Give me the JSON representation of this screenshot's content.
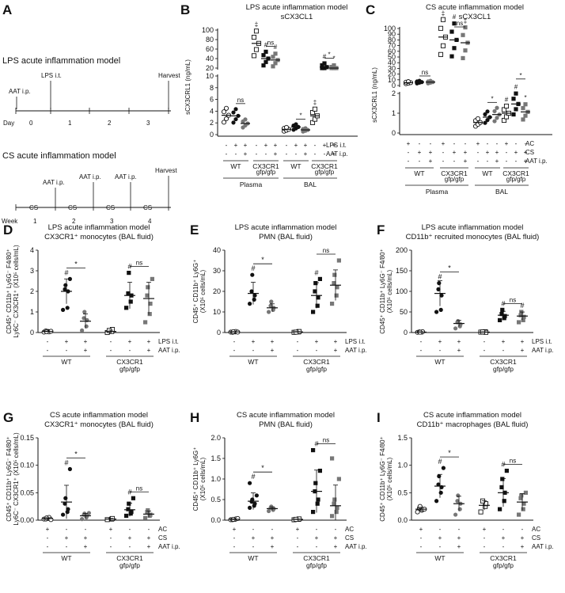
{
  "panel_a": {
    "label": "A",
    "lps": {
      "title": "LPS acute inflammation model",
      "events": [
        "AAT i.p.",
        "LPS i.t.",
        "Harvest"
      ],
      "row_label": "Day",
      "ticks": [
        "0",
        "1",
        "2",
        "3"
      ]
    },
    "cs": {
      "title": "CS acute inflammation model",
      "events": [
        "AAT i.p.",
        "AAT i.p.",
        "AAT i.p.",
        "Harvest"
      ],
      "segment_label": "CS",
      "row_label": "Week",
      "ticks": [
        "1",
        "2",
        "3",
        "4"
      ]
    }
  },
  "chart_data": [
    {
      "id": "B",
      "label": "B",
      "type": "scatter",
      "title": "LPS acute inflammation model",
      "subtitle": "sCX3CL1",
      "ylabel": "sCX3CRL1 (ng/mL)",
      "axis": {
        "lower": {
          "ylim": [
            0,
            10
          ],
          "ticks": [
            "0",
            "2",
            "4",
            "6",
            "8",
            "10"
          ]
        },
        "upper": {
          "ylim": [
            20,
            100
          ],
          "ticks": [
            "20",
            "40",
            "60",
            "80",
            "100"
          ]
        }
      },
      "groups": [
        "Plasma WT -/-",
        "Plasma WT +/-",
        "Plasma WT +/+",
        "Plasma CX3CR1 -/-",
        "Plasma CX3CR1 +/-",
        "Plasma CX3CR1 +/+",
        "BAL WT -/-",
        "BAL WT +/-",
        "BAL WT +/+",
        "BAL CX3CR1 -/-",
        "BAL CX3CR1 +/-",
        "BAL CX3CR1 +/+"
      ],
      "means": [
        3.3,
        3.2,
        1.9,
        72,
        40,
        37,
        0.9,
        1.3,
        0.8,
        3.2,
        22,
        19
      ],
      "points": [
        [
          2,
          3,
          4,
          5,
          2.5,
          3.5
        ],
        [
          1.5,
          3.5,
          5,
          2,
          4,
          3
        ],
        [
          1.7,
          2,
          1.9
        ],
        [
          85,
          70,
          60,
          75,
          65,
          80
        ],
        [
          30,
          45,
          40,
          35,
          55
        ],
        [
          25,
          40,
          50,
          30,
          38
        ]
      ],
      "points_bal": [
        [
          0.6,
          0.9,
          1.0,
          1.1,
          0.8
        ],
        [
          1.0,
          1.5,
          1.2,
          1.6,
          1.4
        ],
        [
          0.5,
          0.8,
          1.1,
          0.7
        ],
        [
          2.5,
          3.5,
          4,
          3,
          2.2
        ],
        [
          20,
          22,
          25,
          21
        ],
        [
          15,
          19,
          22,
          18
        ]
      ],
      "markers": [
        "‡",
        "#",
        "#",
        "‡",
        "#",
        "*"
      ],
      "significance": [
        "ns",
        "ns",
        "*",
        "*"
      ],
      "rows": [
        {
          "name": "LPS i.t.",
          "cells": [
            "-",
            "+",
            "+",
            "-",
            "+",
            "+",
            "-",
            "+",
            "+",
            "-",
            "+",
            "+"
          ]
        },
        {
          "name": "AAT i.p.",
          "cells": [
            "-",
            "-",
            "+",
            "-",
            "-",
            "+",
            "-",
            "-",
            "+",
            "-",
            "-",
            "+"
          ]
        }
      ],
      "genotypes": [
        "WT",
        "CX3CR1",
        "gfp/gfp"
      ],
      "compartments": [
        "Plasma",
        "BAL"
      ]
    },
    {
      "id": "C",
      "label": "C",
      "type": "scatter",
      "title": "CS acute inflammation model",
      "subtitle": "sCX3CL1",
      "ylabel": "sCX3CRL1 (ng/mL)",
      "axis": {
        "lower": {
          "ylim": [
            0,
            3
          ],
          "ticks": [
            "0",
            "1",
            "2"
          ]
        },
        "upper": {
          "ylim": [
            0,
            100
          ],
          "ticks": [
            "0",
            "10",
            "20",
            "30",
            "40",
            "50",
            "60",
            "70",
            "80",
            "90",
            "100"
          ]
        }
      },
      "means": [
        5,
        6,
        6,
        85,
        80,
        75,
        0.8,
        1.2,
        1.4,
        1.5,
        2.2,
        1.6
      ],
      "markers": [
        "‡",
        "#",
        "‡",
        "#",
        "#",
        "*"
      ],
      "significance": [
        "ns",
        "ns",
        "*",
        "*"
      ],
      "rows": [
        {
          "name": "AC",
          "cells": [
            "+",
            "-",
            "-",
            "+",
            "-",
            "-",
            "+",
            "-",
            "-",
            "+",
            "-",
            "-"
          ]
        },
        {
          "name": "CS",
          "cells": [
            "-",
            "+",
            "+",
            "-",
            "+",
            "+",
            "-",
            "+",
            "+",
            "-",
            "+",
            "+"
          ]
        },
        {
          "name": "AAT i.p.",
          "cells": [
            "-",
            "-",
            "+",
            "-",
            "-",
            "+",
            "-",
            "-",
            "+",
            "-",
            "-",
            "+"
          ]
        }
      ],
      "genotypes": [
        "WT",
        "CX3CR1",
        "gfp/gfp"
      ],
      "compartments": [
        "Plasma",
        "BAL"
      ]
    },
    {
      "id": "D",
      "label": "D",
      "type": "scatter",
      "title": "LPS acute inflammation model",
      "subtitle": "CX3CR1⁺ monocytes (BAL fluid)",
      "ylabel": [
        "CD45⁺ CD11b⁺ Ly6G⁻ F4/80⁺",
        "Ly6C⁻ CX3CR1⁺ (X10⁵ cells/mL)"
      ],
      "ylim": [
        0,
        4
      ],
      "ticks": [
        "0",
        "1",
        "2",
        "3",
        "4"
      ],
      "means": [
        0.05,
        2.0,
        0.55,
        0.05,
        1.8,
        1.65
      ],
      "points": [
        [
          0.02,
          0.05,
          0.03,
          0.08,
          0.04,
          0.06
        ],
        [
          1.1,
          1.2,
          2.0,
          2.1,
          2.3,
          2.6
        ],
        [
          0.1,
          0.3,
          0.6,
          0.7,
          1.0
        ],
        [
          0.0,
          0.05,
          0.15,
          0.1
        ],
        [
          1.2,
          1.5,
          1.8,
          1.9,
          2.9
        ],
        [
          0.5,
          0.9,
          1.4,
          1.8,
          2.2,
          2.6
        ]
      ],
      "markers": [
        "#",
        "#"
      ],
      "significance": [
        "*",
        "ns"
      ],
      "rows": [
        {
          "name": "LPS i.t.",
          "cells": [
            "-",
            "+",
            "+",
            "-",
            "+",
            "+"
          ]
        },
        {
          "name": "AAT i.p.",
          "cells": [
            "-",
            "-",
            "+",
            "-",
            "-",
            "+"
          ]
        }
      ],
      "genotypes": [
        "WT",
        "CX3CR1",
        "gfp/gfp"
      ]
    },
    {
      "id": "E",
      "label": "E",
      "type": "scatter",
      "title": "LPS acute inflammation model",
      "subtitle": "PMN (BAL fluid)",
      "ylabel": [
        "CD45⁺ CD11b⁺ Ly6G⁺",
        "(X10⁵ cells/mL)"
      ],
      "ylim": [
        0,
        40
      ],
      "ticks": [
        "0",
        "10",
        "20",
        "30",
        "40"
      ],
      "means": [
        0.3,
        19,
        12,
        0.3,
        18,
        23
      ],
      "points": [
        [
          0.2,
          0.3,
          0.5,
          0.1,
          0.4,
          0.2
        ],
        [
          14,
          16,
          18,
          20,
          28
        ],
        [
          10,
          11,
          12,
          13,
          15
        ],
        [
          0.1,
          0.3,
          0.5,
          0.2
        ],
        [
          10,
          13,
          17,
          20,
          24,
          26
        ],
        [
          14,
          18,
          22,
          24,
          28,
          35
        ]
      ],
      "markers": [
        "#",
        "#"
      ],
      "significance": [
        "*",
        "ns"
      ],
      "rows": [
        {
          "name": "LPS i.t.",
          "cells": [
            "-",
            "+",
            "+",
            "-",
            "+",
            "+"
          ]
        },
        {
          "name": "AAT i.p.",
          "cells": [
            "-",
            "-",
            "+",
            "-",
            "-",
            "+"
          ]
        }
      ],
      "genotypes": [
        "WT",
        "CX3CR1",
        "gfp/gfp"
      ]
    },
    {
      "id": "F",
      "label": "F",
      "type": "scatter",
      "title": "LPS acute inflammation model",
      "subtitle": "CD11b⁺ recruited monocytes (BAL fluid)",
      "ylabel": [
        "CD45⁺ CD11b⁺ Ly6G⁻ F4/80⁺",
        "(X10⁵ cells/mL)"
      ],
      "ylim": [
        0,
        200
      ],
      "ticks": [
        "0",
        "50",
        "100",
        "150",
        "200"
      ],
      "means": [
        1,
        95,
        22,
        1,
        42,
        40
      ],
      "points": [
        [
          0.5,
          1,
          2,
          1.5,
          0.8
        ],
        [
          50,
          55,
          90,
          105,
          120
        ],
        [
          10,
          15,
          20,
          25,
          28
        ],
        [
          1,
          2,
          0.5,
          1.5
        ],
        [
          30,
          35,
          40,
          45,
          55
        ],
        [
          25,
          30,
          38,
          42,
          50
        ]
      ],
      "markers": [
        "#",
        "#",
        "#"
      ],
      "significance": [
        "*",
        "ns"
      ],
      "rows": [
        {
          "name": "LPS i.t.",
          "cells": [
            "-",
            "+",
            "+",
            "-",
            "+",
            "+"
          ]
        },
        {
          "name": "AAT i.p.",
          "cells": [
            "-",
            "-",
            "+",
            "-",
            "-",
            "+"
          ]
        }
      ],
      "genotypes": [
        "WT",
        "CX3CR1",
        "gfp/gfp"
      ]
    },
    {
      "id": "G",
      "label": "G",
      "type": "scatter",
      "title": "CS acute inflammation model",
      "subtitle": "CX3CR1⁺ monocytes (BAL fluid)",
      "ylabel": [
        "CD45⁺ CD11b⁺ Ly6G⁻ F4/80⁺",
        "Ly6C⁻ CX3CR1⁺ (X10⁵ cells/mL)"
      ],
      "ylim": [
        0,
        0.15
      ],
      "ticks": [
        "0.00",
        "0.05",
        "0.10",
        "0.15"
      ],
      "means": [
        0.003,
        0.033,
        0.008,
        0.002,
        0.019,
        0.011
      ],
      "points": [
        [
          0.002,
          0.003,
          0.005,
          0.002,
          0.004,
          0.001
        ],
        [
          0.01,
          0.015,
          0.02,
          0.03,
          0.04,
          0.093
        ],
        [
          0.002,
          0.005,
          0.008,
          0.01,
          0.012,
          0.013
        ],
        [
          0.001,
          0.002,
          0.003
        ],
        [
          0.008,
          0.012,
          0.015,
          0.02,
          0.03,
          0.04
        ],
        [
          0.004,
          0.008,
          0.01,
          0.015,
          0.018
        ]
      ],
      "markers": [
        "#",
        "#"
      ],
      "significance": [
        "*",
        "ns"
      ],
      "rows": [
        {
          "name": "AC",
          "cells": [
            "+",
            "-",
            "-",
            "+",
            "-",
            "-"
          ]
        },
        {
          "name": "CS",
          "cells": [
            "-",
            "+",
            "+",
            "-",
            "+",
            "+"
          ]
        },
        {
          "name": "AAT i.p.",
          "cells": [
            "-",
            "-",
            "+",
            "-",
            "-",
            "+"
          ]
        }
      ],
      "genotypes": [
        "WT",
        "CX3CR1",
        "gfp/gfp"
      ]
    },
    {
      "id": "H",
      "label": "H",
      "type": "scatter",
      "title": "CS acute inflammation model",
      "subtitle": "PMN (BAL fluid)",
      "ylabel": [
        "CD45⁺ CD11b⁺ Ly6G⁺",
        "(X10⁵ cells/mL)"
      ],
      "ylim": [
        0,
        2.0
      ],
      "ticks": [
        "0.0",
        "0.5",
        "1.0",
        "1.5",
        "2.0"
      ],
      "means": [
        0.02,
        0.46,
        0.28,
        0.02,
        0.7,
        0.35
      ],
      "points": [
        [
          0.01,
          0.02,
          0.03,
          0.01,
          0.02,
          0.04
        ],
        [
          0.3,
          0.35,
          0.4,
          0.45,
          0.5,
          0.6,
          0.9
        ],
        [
          0.22,
          0.25,
          0.28,
          0.3,
          0.33
        ],
        [
          0.01,
          0.02,
          0.03,
          0.02
        ],
        [
          0.2,
          0.4,
          0.5,
          0.7,
          0.9,
          1.2,
          1.7
        ],
        [
          0.1,
          0.2,
          0.3,
          0.4,
          0.5,
          1.0,
          1.5
        ]
      ],
      "markers": [
        "#",
        "#"
      ],
      "significance": [
        "*",
        "ns"
      ],
      "rows": [
        {
          "name": "AC",
          "cells": [
            "+",
            "-",
            "-",
            "+",
            "-",
            "-"
          ]
        },
        {
          "name": "CS",
          "cells": [
            "-",
            "+",
            "+",
            "-",
            "+",
            "+"
          ]
        },
        {
          "name": "AAT i.p.",
          "cells": [
            "-",
            "-",
            "+",
            "-",
            "-",
            "+"
          ]
        }
      ],
      "genotypes": [
        "WT",
        "CX3CR1",
        "gfp/gfp"
      ]
    },
    {
      "id": "I",
      "label": "I",
      "type": "scatter",
      "title": "CS acute inflammation model",
      "subtitle": "CD11b⁺ macrophages (BAL fluid)",
      "ylabel": [
        "CD45⁺ CD11b⁺ Ly6G⁻ F4/80⁺",
        "(X10⁵ cells/mL)"
      ],
      "ylim": [
        0,
        1.5
      ],
      "ticks": [
        "0.0",
        "0.5",
        "1.0",
        "1.5"
      ],
      "means": [
        0.2,
        0.62,
        0.3,
        0.27,
        0.5,
        0.33
      ],
      "points": [
        [
          0.15,
          0.18,
          0.2,
          0.22,
          0.25,
          0.2
        ],
        [
          0.35,
          0.5,
          0.6,
          0.65,
          0.8,
          0.95
        ],
        [
          0.1,
          0.2,
          0.3,
          0.35,
          0.45
        ],
        [
          0.15,
          0.25,
          0.3,
          0.35
        ],
        [
          0.2,
          0.35,
          0.5,
          0.6,
          0.75,
          0.9
        ],
        [
          0.1,
          0.2,
          0.3,
          0.4,
          0.45,
          0.5
        ]
      ],
      "markers": [
        "#",
        "#"
      ],
      "significance": [
        "*",
        "ns"
      ],
      "rows": [
        {
          "name": "AC",
          "cells": [
            "+",
            "-",
            "-",
            "+",
            "-",
            "-"
          ]
        },
        {
          "name": "CS",
          "cells": [
            "-",
            "+",
            "+",
            "-",
            "+",
            "+"
          ]
        },
        {
          "name": "AAT i.p.",
          "cells": [
            "-",
            "-",
            "+",
            "-",
            "-",
            "+"
          ]
        }
      ],
      "genotypes": [
        "WT",
        "CX3CR1",
        "gfp/gfp"
      ]
    }
  ]
}
